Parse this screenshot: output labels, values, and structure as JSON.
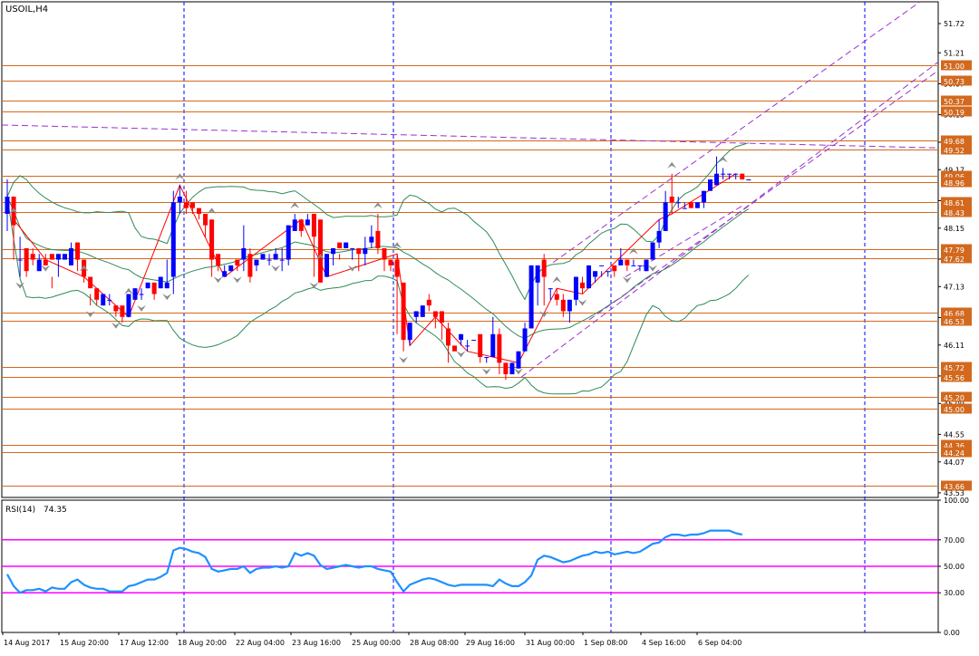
{
  "chart_data": [
    {
      "type": "candlestick",
      "title": "USOIL,H4",
      "ylim": [
        43.45,
        52.1
      ],
      "price_ticks": [
        "51.72",
        "51.21",
        "50.67",
        "50.13",
        "49.65",
        "49.17",
        "48.63",
        "48.15",
        "47.61",
        "47.13",
        "46.59",
        "46.11",
        "45.57",
        "45.09",
        "44.55",
        "44.07",
        "43.53"
      ],
      "x_labels": [
        "14 Aug 2017",
        "15 Aug 20:00",
        "17 Aug 12:00",
        "18 Aug 20:00",
        "22 Aug 04:00",
        "23 Aug 16:00",
        "25 Aug 00:00",
        "28 Aug 08:00",
        "29 Aug 16:00",
        "31 Aug 00:00",
        "1 Sep 08:00",
        "4 Sep 16:00",
        "6 Sep 04:00"
      ],
      "level_labels": [
        "51.00",
        "50.73",
        "50.37",
        "50.19",
        "49.68",
        "49.52",
        "49.06",
        "48.96",
        "48.61",
        "48.43",
        "47.79",
        "47.62",
        "46.68",
        "46.53",
        "45.72",
        "45.56",
        "45.20",
        "45.00",
        "44.36",
        "44.24",
        "43.66"
      ],
      "last_price": "49.06",
      "up_color": "#0000ff",
      "down_color": "#ff0000",
      "level_color": "#d2691e",
      "band_color": "#2e8b57",
      "trendline_color": "#9932cc",
      "zigzag_color": "#ff0000",
      "separator_color": "#0000ff",
      "candles": [
        [
          48.4,
          49.0,
          48.7,
          48.1
        ],
        [
          48.7,
          48.3,
          48.2,
          47.6
        ],
        [
          47.6,
          48.0,
          47.6,
          47.3
        ],
        [
          47.8,
          47.8,
          47.4,
          47.3
        ],
        [
          47.7,
          47.8,
          47.6,
          47.5
        ],
        [
          47.4,
          47.6,
          47.6,
          47.7
        ],
        [
          47.6,
          47.7,
          47.5,
          47.6
        ],
        [
          47.7,
          47.3,
          47.6,
          47.1
        ],
        [
          47.6,
          47.6,
          47.7,
          47.3
        ],
        [
          47.6,
          47.6,
          47.7,
          47.6
        ],
        [
          47.5,
          47.9,
          47.8,
          47.6
        ],
        [
          47.9,
          47.9,
          47.6,
          47.4
        ],
        [
          47.6,
          47.3,
          47.3,
          47.2
        ],
        [
          47.3,
          47.0,
          47.1,
          46.8
        ],
        [
          47.1,
          46.9,
          46.9,
          46.8
        ],
        [
          46.8,
          46.9,
          47.0,
          46.8
        ],
        [
          46.9,
          47.0,
          46.9,
          46.8
        ],
        [
          46.8,
          46.8,
          46.7,
          46.6
        ],
        [
          46.8,
          46.6,
          46.6,
          46.5
        ],
        [
          46.6,
          46.9,
          47.0,
          46.6
        ],
        [
          46.9,
          47.1,
          47.1,
          46.9
        ],
        [
          47.0,
          47.1,
          47.0,
          46.9
        ],
        [
          47.1,
          47.2,
          47.2,
          47.1
        ],
        [
          47.2,
          47.2,
          47.0,
          46.9
        ],
        [
          47.1,
          47.3,
          47.3,
          47.1
        ],
        [
          47.1,
          47.6,
          47.2,
          47.1
        ],
        [
          47.3,
          48.8,
          48.6,
          47.0
        ],
        [
          48.6,
          48.9,
          48.7,
          48.4
        ],
        [
          48.6,
          48.8,
          48.5,
          48.4
        ],
        [
          48.6,
          48.6,
          48.5,
          48.4
        ],
        [
          48.5,
          48.5,
          48.4,
          48.3
        ],
        [
          48.4,
          48.4,
          48.2,
          48.0
        ],
        [
          48.3,
          48.3,
          47.6,
          47.3
        ],
        [
          47.7,
          47.6,
          47.5,
          47.4
        ],
        [
          47.3,
          47.5,
          47.4,
          47.3
        ],
        [
          47.4,
          47.4,
          47.5,
          47.5
        ],
        [
          47.6,
          47.6,
          47.5,
          47.4
        ],
        [
          47.6,
          48.2,
          47.8,
          47.4
        ],
        [
          47.7,
          47.8,
          47.3,
          47.2
        ],
        [
          47.5,
          47.6,
          47.6,
          47.4
        ],
        [
          47.6,
          47.6,
          47.7,
          47.6
        ],
        [
          47.6,
          47.7,
          47.6,
          47.5
        ],
        [
          47.6,
          47.8,
          47.7,
          47.6
        ],
        [
          47.6,
          47.8,
          47.6,
          47.4
        ],
        [
          47.6,
          48.1,
          48.2,
          47.5
        ],
        [
          48.1,
          48.4,
          48.3,
          48.1
        ],
        [
          48.3,
          48.3,
          48.1,
          48.0
        ],
        [
          48.2,
          48.4,
          48.3,
          48.2
        ],
        [
          48.4,
          48.2,
          48.0,
          47.3
        ],
        [
          48.3,
          47.5,
          47.2,
          47.2
        ],
        [
          47.3,
          47.7,
          47.7,
          47.3
        ],
        [
          47.7,
          47.8,
          47.8,
          47.5
        ],
        [
          47.9,
          47.7,
          47.8,
          47.6
        ],
        [
          47.8,
          47.9,
          47.9,
          47.8
        ],
        [
          47.8,
          47.8,
          47.8,
          47.6
        ],
        [
          47.8,
          47.8,
          47.7,
          47.4
        ],
        [
          47.7,
          48.0,
          47.8,
          47.5
        ],
        [
          47.9,
          48.2,
          48.0,
          47.8
        ],
        [
          48.1,
          48.4,
          47.8,
          47.7
        ],
        [
          47.8,
          47.7,
          47.6,
          47.4
        ],
        [
          47.6,
          47.6,
          47.5,
          47.4
        ],
        [
          47.6,
          47.7,
          47.3,
          46.3
        ],
        [
          47.2,
          46.5,
          46.2,
          46.0
        ],
        [
          46.2,
          46.5,
          46.5,
          46.1
        ],
        [
          46.6,
          46.7,
          46.7,
          46.5
        ],
        [
          46.6,
          46.7,
          46.8,
          46.6
        ],
        [
          46.9,
          47.0,
          46.8,
          46.7
        ],
        [
          46.7,
          46.6,
          46.6,
          46.4
        ],
        [
          46.7,
          46.5,
          46.5,
          46.2
        ],
        [
          46.4,
          46.5,
          46.1,
          45.8
        ],
        [
          46.1,
          45.9,
          46.0,
          45.9
        ],
        [
          46.2,
          46.3,
          46.3,
          46.1
        ],
        [
          46.1,
          46.2,
          46.1,
          46.0
        ],
        [
          46.2,
          46.0,
          46.2,
          46.0
        ],
        [
          46.3,
          46.2,
          45.9,
          45.8
        ],
        [
          45.9,
          45.9,
          45.9,
          45.8
        ],
        [
          45.9,
          46.6,
          46.3,
          45.9
        ],
        [
          46.3,
          46.4,
          45.8,
          45.6
        ],
        [
          45.8,
          45.6,
          45.6,
          45.5
        ],
        [
          45.6,
          45.8,
          45.8,
          45.6
        ],
        [
          45.7,
          46.0,
          46.0,
          45.8
        ],
        [
          46.0,
          46.5,
          46.4,
          46.0
        ],
        [
          46.4,
          46.6,
          47.5,
          46.4
        ],
        [
          47.2,
          47.3,
          47.5,
          46.8
        ],
        [
          47.6,
          47.7,
          47.3,
          46.8
        ],
        [
          47.1,
          47.1,
          47.1,
          46.9
        ],
        [
          47.0,
          47.1,
          46.9,
          46.8
        ],
        [
          46.9,
          47.0,
          46.7,
          46.6
        ],
        [
          46.7,
          46.9,
          46.9,
          46.5
        ],
        [
          46.9,
          47.3,
          47.3,
          46.8
        ],
        [
          47.2,
          47.3,
          47.1,
          47.0
        ],
        [
          47.1,
          47.5,
          47.5,
          47.3
        ],
        [
          47.3,
          47.3,
          47.4,
          47.2
        ],
        [
          47.5,
          47.4,
          47.5,
          47.3
        ],
        [
          47.4,
          47.4,
          47.4,
          47.3
        ],
        [
          47.5,
          47.5,
          47.4,
          47.3
        ],
        [
          47.5,
          47.8,
          47.6,
          47.5
        ],
        [
          47.6,
          47.5,
          47.5,
          47.4
        ],
        [
          47.5,
          47.6,
          47.5,
          47.5
        ],
        [
          47.5,
          47.5,
          47.5,
          47.4
        ],
        [
          47.4,
          47.5,
          47.6,
          47.4
        ],
        [
          47.6,
          47.6,
          47.9,
          47.6
        ],
        [
          47.9,
          48.3,
          48.1,
          47.8
        ],
        [
          48.1,
          48.8,
          48.6,
          48.1
        ],
        [
          48.7,
          49.1,
          48.6,
          48.4
        ],
        [
          48.6,
          48.7,
          48.6,
          48.5
        ],
        [
          48.5,
          48.6,
          48.5,
          48.5
        ],
        [
          48.6,
          48.6,
          48.5,
          48.5
        ],
        [
          48.5,
          48.6,
          48.6,
          48.5
        ],
        [
          48.6,
          48.8,
          48.8,
          48.5
        ],
        [
          48.8,
          48.9,
          49.0,
          48.8
        ],
        [
          48.9,
          49.4,
          49.1,
          48.9
        ],
        [
          49.1,
          49.2,
          49.1,
          49.0
        ],
        [
          49.1,
          49.1,
          49.1,
          49.0
        ],
        [
          49.1,
          49.1,
          49.1,
          49.0
        ],
        [
          49.1,
          49.1,
          49.0,
          49.0
        ],
        [
          49.0,
          49.0,
          49.0,
          49.0
        ]
      ]
    },
    {
      "type": "line",
      "title": "RSI(14)",
      "value_label": "74.35",
      "ylim": [
        0,
        100
      ],
      "y_ticks": [
        "100.00",
        "70.00",
        "50.00",
        "30.00",
        "0.00"
      ],
      "levels": [
        30,
        50,
        70
      ],
      "line_color": "#1e90ff",
      "level_color": "#ff00ff",
      "series": [
        {
          "values": [
            44,
            35,
            30,
            32,
            32,
            33,
            31,
            34,
            33,
            33,
            38,
            40,
            36,
            34,
            33,
            33,
            31,
            31,
            31,
            35,
            36,
            38,
            40,
            40,
            42,
            45,
            62,
            64,
            63,
            61,
            60,
            57,
            48,
            46,
            47,
            48,
            48,
            50,
            45,
            48,
            49,
            49,
            50,
            49,
            50,
            60,
            58,
            60,
            58,
            51,
            48,
            49,
            50,
            51,
            50,
            49,
            50,
            50,
            48,
            47,
            46,
            38,
            31,
            36,
            38,
            40,
            41,
            40,
            38,
            36,
            35,
            36,
            36,
            36,
            36,
            36,
            35,
            40,
            37,
            35,
            35,
            38,
            43,
            55,
            58,
            57,
            55,
            53,
            54,
            56,
            58,
            59,
            61,
            60,
            61,
            59,
            60,
            61,
            60,
            61,
            64,
            67,
            68,
            72,
            74,
            74,
            73,
            74,
            74,
            75,
            77,
            77,
            77,
            77,
            75,
            74
          ]
        }
      ]
    }
  ]
}
